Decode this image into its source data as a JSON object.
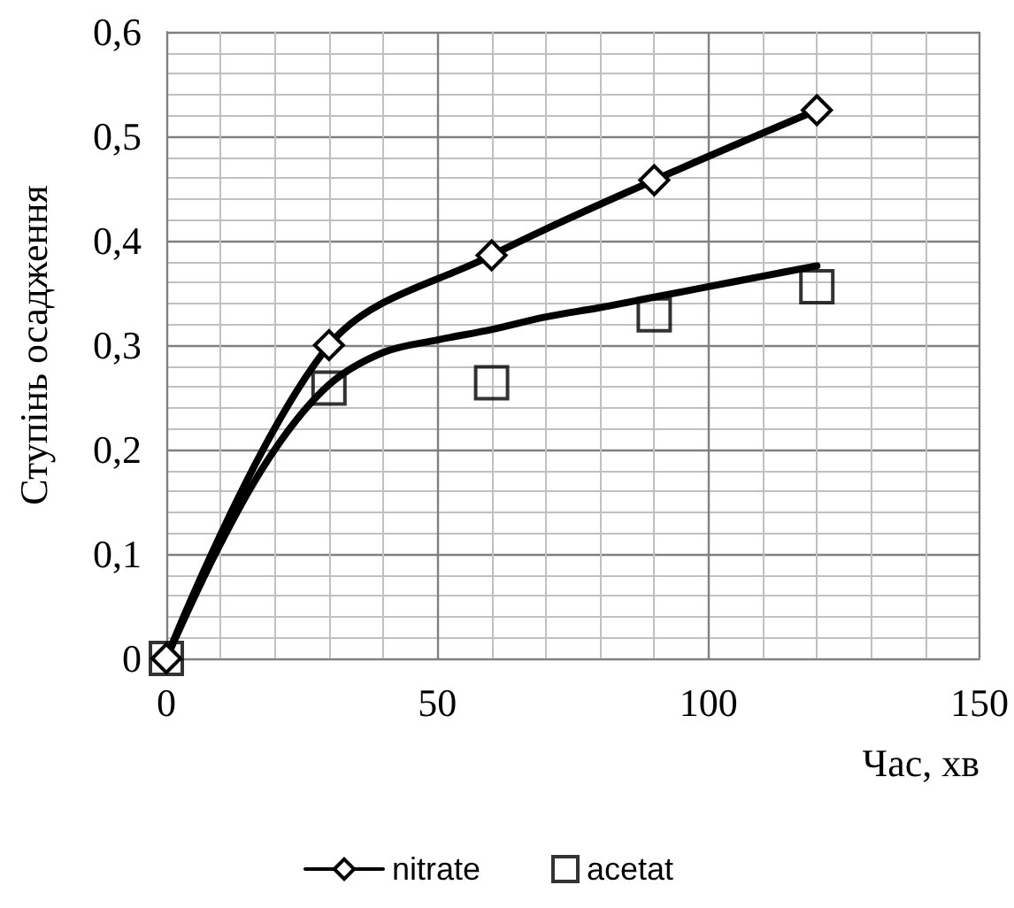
{
  "chart_data": {
    "type": "line",
    "xlabel": "Час, хв",
    "ylabel": "Ступінь осадження",
    "xlim": [
      0,
      150
    ],
    "xticks": [
      0,
      50,
      100,
      150
    ],
    "ylim": [
      0,
      0.6
    ],
    "yticks": [
      {
        "value": 0,
        "label": "0"
      },
      {
        "value": 0.1,
        "label": "0,1"
      },
      {
        "value": 0.2,
        "label": "0,2"
      },
      {
        "value": 0.3,
        "label": "0,3"
      },
      {
        "value": 0.4,
        "label": "0,4"
      },
      {
        "value": 0.5,
        "label": "0,5"
      },
      {
        "value": 0.6,
        "label": "0,6"
      }
    ],
    "grid": true,
    "legend": "bottom",
    "series": [
      {
        "name": "nitrate",
        "color": "#000000",
        "marker": "diamond",
        "line_style": "solid",
        "x": [
          0,
          30,
          60,
          90,
          120
        ],
        "values": [
          0,
          0.3,
          0.386,
          0.458,
          0.525
        ]
      },
      {
        "name": "acetat",
        "type": "scatter",
        "color": "#000000",
        "marker": "square",
        "x": [
          0,
          30,
          60,
          90,
          120
        ],
        "values": [
          0,
          0.259,
          0.264,
          0.329,
          0.356
        ]
      },
      {
        "type": "line",
        "color": "#000000",
        "marker": "none",
        "line_style": "solid",
        "x": [
          0,
          10,
          20,
          30,
          40,
          50,
          60,
          70,
          80,
          90,
          100,
          110,
          120
        ],
        "values": [
          0,
          0.11,
          0.2,
          0.262,
          0.293,
          0.305,
          0.315,
          0.327,
          0.336,
          0.346,
          0.356,
          0.366,
          0.376
        ]
      }
    ]
  }
}
